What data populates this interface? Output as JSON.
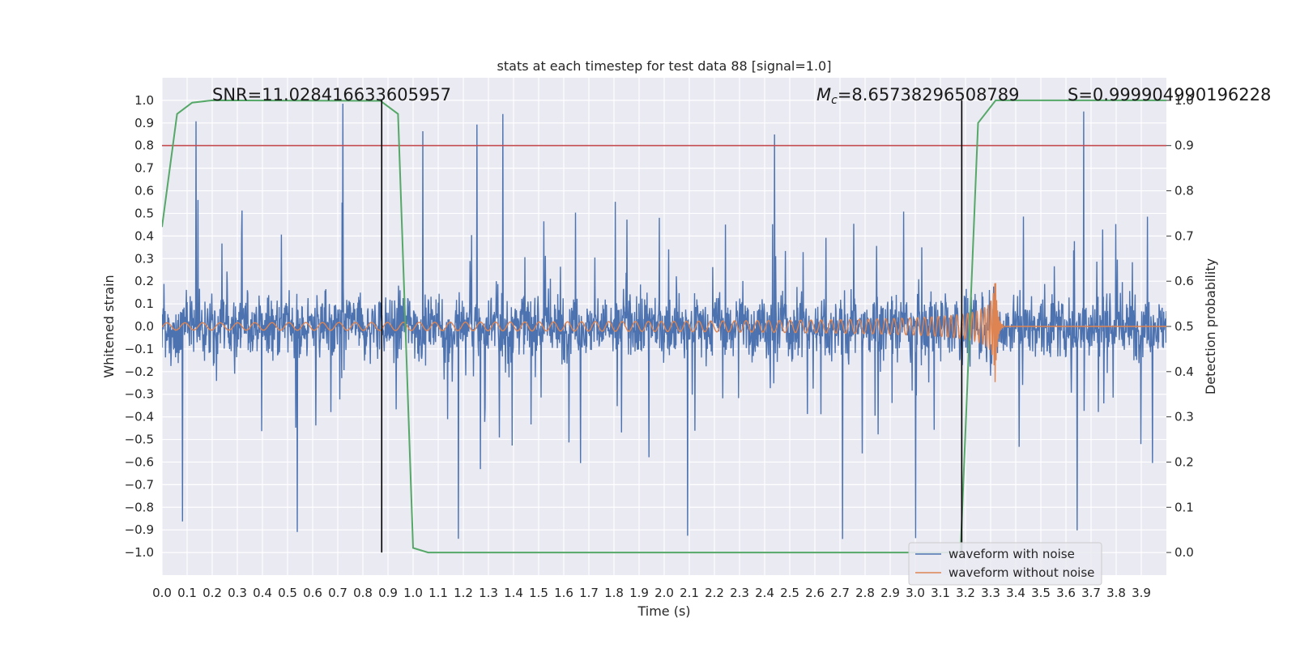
{
  "chart_data": {
    "type": "line",
    "title": "stats at each timestep for test data 88 [signal=1.0]",
    "xlabel": "Time (s)",
    "ylabel": "Whitened strain",
    "y2label": "Detection probability",
    "xlim": [
      0.0,
      4.0
    ],
    "ylim": [
      -1.1,
      1.1
    ],
    "y2lim": [
      -0.05,
      1.05
    ],
    "grid": true,
    "x_ticks": [
      "0.0",
      "0.1",
      "0.2",
      "0.3",
      "0.4",
      "0.5",
      "0.6",
      "0.7",
      "0.8",
      "0.9",
      "1.0",
      "1.1",
      "1.2",
      "1.3",
      "1.4",
      "1.5",
      "1.6",
      "1.7",
      "1.8",
      "1.9",
      "2.0",
      "2.1",
      "2.2",
      "2.3",
      "2.4",
      "2.5",
      "2.6",
      "2.7",
      "2.8",
      "2.9",
      "3.0",
      "3.1",
      "3.2",
      "3.3",
      "3.4",
      "3.5",
      "3.6",
      "3.7",
      "3.8",
      "3.9"
    ],
    "y_ticks": [
      "1.0",
      "0.9",
      "0.8",
      "0.7",
      "0.6",
      "0.5",
      "0.4",
      "0.3",
      "0.2",
      "0.1",
      "0.0",
      "−0.1",
      "−0.2",
      "−0.3",
      "−0.4",
      "−0.5",
      "−0.6",
      "−0.7",
      "−0.8",
      "−0.9",
      "−1.0"
    ],
    "y2_ticks": [
      "1.0",
      "0.9",
      "0.8",
      "0.7",
      "0.6",
      "0.5",
      "0.4",
      "0.3",
      "0.2",
      "0.1",
      "0.0"
    ],
    "annotations": {
      "snr": "SNR=11.028416633605957",
      "mc_symbol": "M",
      "mc_sub": "c",
      "mc_value": "=8.65738296508789",
      "s": "S=0.999904990196228"
    },
    "threshold": {
      "y2": 0.9,
      "color": "#c44e52"
    },
    "vlines": [
      0.875,
      3.185
    ],
    "series": [
      {
        "name": "waveform with noise",
        "axis": "y",
        "color": "#4c72b0",
        "generator": "noise",
        "amplitude_range": [
          -1.0,
          1.0
        ]
      },
      {
        "name": "waveform without noise",
        "axis": "y",
        "color": "#dd8452",
        "generator": "chirp",
        "merger_time": 3.32,
        "peak_amplitude": 0.32
      },
      {
        "name": "detection probability",
        "axis": "y2",
        "color": "#55a868",
        "x": [
          0.0,
          0.06,
          0.12,
          0.2,
          0.87,
          0.94,
          1.0,
          1.06,
          3.18,
          3.25,
          3.32,
          4.0
        ],
        "values": [
          0.72,
          0.97,
          0.995,
          1.0,
          0.999,
          0.97,
          0.01,
          0.0,
          0.0,
          0.95,
          1.0,
          1.0
        ]
      }
    ],
    "legend": {
      "placement": "bottom-right",
      "entries": [
        {
          "label": "waveform with noise",
          "color": "#4c72b0"
        },
        {
          "label": "waveform without noise",
          "color": "#dd8452"
        }
      ]
    }
  }
}
